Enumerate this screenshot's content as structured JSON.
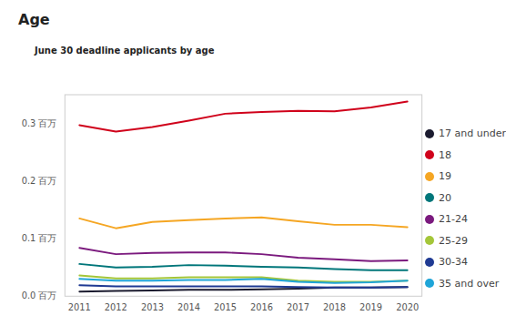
{
  "chart_data": {
    "type": "line",
    "title": "Age",
    "subtitle": "June 30 deadline applicants by age",
    "x": [
      2011,
      2012,
      2013,
      2014,
      2015,
      2016,
      2017,
      2018,
      2019,
      2020
    ],
    "xlim": [
      2010.6,
      2020.4
    ],
    "xticks": [
      2011,
      2012,
      2013,
      2014,
      2015,
      2016,
      2017,
      2018,
      2019,
      2020
    ],
    "ylim": [
      0,
      0.35
    ],
    "yticks": [
      {
        "value": 0,
        "label": "0.0 百万"
      },
      {
        "value": 0.1,
        "label": "0.1 百万"
      },
      {
        "value": 0.2,
        "label": "0.2 百万"
      },
      {
        "value": 0.3,
        "label": "0.3 百万"
      }
    ],
    "grid": false,
    "legend": "right",
    "series": [
      {
        "name": "17 and under",
        "color": "#1b1b2f",
        "values": [
          0.008,
          0.009,
          0.01,
          0.011,
          0.011,
          0.012,
          0.013,
          0.015,
          0.015,
          0.016
        ]
      },
      {
        "name": "18",
        "color": "#d0021b",
        "values": [
          0.297,
          0.286,
          0.294,
          0.305,
          0.317,
          0.32,
          0.322,
          0.321,
          0.328,
          0.338
        ]
      },
      {
        "name": "19",
        "color": "#f5a623",
        "values": [
          0.135,
          0.118,
          0.129,
          0.132,
          0.135,
          0.137,
          0.13,
          0.124,
          0.124,
          0.12
        ]
      },
      {
        "name": "20",
        "color": "#00767a",
        "values": [
          0.056,
          0.05,
          0.051,
          0.054,
          0.053,
          0.051,
          0.05,
          0.047,
          0.045,
          0.045
        ]
      },
      {
        "name": "21-24",
        "color": "#7b1a7e",
        "values": [
          0.084,
          0.073,
          0.075,
          0.076,
          0.076,
          0.073,
          0.067,
          0.064,
          0.061,
          0.062
        ]
      },
      {
        "name": "25-29",
        "color": "#a4c639",
        "values": [
          0.036,
          0.031,
          0.031,
          0.033,
          0.033,
          0.033,
          0.027,
          0.025,
          0.025,
          0.027
        ]
      },
      {
        "name": "30-34",
        "color": "#1f3a93",
        "values": [
          0.019,
          0.017,
          0.017,
          0.017,
          0.017,
          0.017,
          0.016,
          0.015,
          0.015,
          0.016
        ]
      },
      {
        "name": "35 and over",
        "color": "#1fa5d8",
        "values": [
          0.03,
          0.027,
          0.027,
          0.028,
          0.028,
          0.03,
          0.025,
          0.023,
          0.024,
          0.027
        ]
      }
    ]
  }
}
